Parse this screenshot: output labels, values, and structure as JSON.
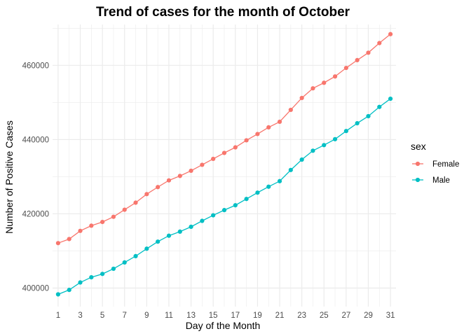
{
  "chart_data": {
    "type": "line",
    "title": "Trend of cases for the month of October",
    "xlabel": "Day of the Month",
    "ylabel": "Number of Positive Cases",
    "x": [
      1,
      2,
      3,
      4,
      5,
      6,
      7,
      8,
      9,
      10,
      11,
      12,
      13,
      14,
      15,
      16,
      17,
      18,
      19,
      20,
      21,
      22,
      23,
      24,
      25,
      26,
      27,
      28,
      29,
      30,
      31
    ],
    "x_ticks": [
      1,
      3,
      5,
      7,
      9,
      11,
      13,
      15,
      17,
      19,
      21,
      23,
      25,
      27,
      29,
      31
    ],
    "x_tick_labels": [
      "1",
      "3",
      "5",
      "7",
      "9",
      "11",
      "13",
      "15",
      "17",
      "19",
      "21",
      "23",
      "25",
      "27",
      "29",
      "31"
    ],
    "y_ticks": [
      400000,
      420000,
      440000,
      460000
    ],
    "y_tick_labels": [
      "400000",
      "420000",
      "440000",
      "460000"
    ],
    "xlim": [
      0.5,
      31.5
    ],
    "ylim": [
      395000,
      471000
    ],
    "grid": true,
    "legend": {
      "title": "sex",
      "position": "right"
    },
    "series": [
      {
        "name": "Female",
        "color": "#F8766D",
        "values": [
          412100,
          413200,
          415400,
          416800,
          417800,
          419200,
          421100,
          423000,
          425300,
          427200,
          429000,
          430200,
          431600,
          433200,
          434800,
          436400,
          437900,
          439800,
          441500,
          443300,
          444800,
          448000,
          451200,
          453800,
          455300,
          457000,
          459300,
          461400,
          463400,
          466000,
          468400
        ]
      },
      {
        "name": "Male",
        "color": "#00BFC4",
        "values": [
          398300,
          399500,
          401500,
          402900,
          403800,
          405200,
          406900,
          408600,
          410600,
          412500,
          414100,
          415200,
          416500,
          418100,
          419600,
          421000,
          422300,
          424000,
          425700,
          427300,
          428800,
          431800,
          434600,
          437000,
          438500,
          440100,
          442300,
          444400,
          446300,
          448800,
          451000
        ]
      }
    ]
  }
}
